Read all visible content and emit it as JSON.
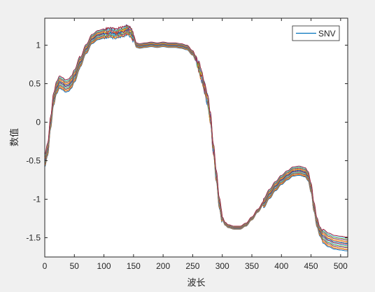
{
  "chart_data": {
    "type": "line",
    "title": "",
    "xlabel": "波长",
    "ylabel": "数值",
    "xlim": [
      0,
      512
    ],
    "ylim": [
      -1.75,
      1.35
    ],
    "xticks": [
      0,
      50,
      100,
      150,
      200,
      250,
      300,
      350,
      400,
      450,
      500
    ],
    "yticks": [
      -1.5,
      -1,
      -0.5,
      0,
      0.5,
      1
    ],
    "xtick_labels": [
      "0",
      "50",
      "100",
      "150",
      "200",
      "250",
      "300",
      "350",
      "400",
      "450",
      "500"
    ],
    "ytick_labels": [
      "-1.5",
      "-1",
      "-0.5",
      "0",
      "0.5",
      "1"
    ],
    "grid": false,
    "legend": {
      "position": "top-right",
      "entries": [
        "SNV"
      ]
    },
    "series_count": 14,
    "series_colors": [
      "#0072BD",
      "#D95319",
      "#EDB120",
      "#7E2F8E",
      "#77AC30",
      "#4DBEEE",
      "#A2142F",
      "#0072BD",
      "#D95319",
      "#EDB120",
      "#7E2F8E",
      "#77AC30",
      "#4DBEEE",
      "#A2142F"
    ],
    "mean_profile": {
      "x": [
        0,
        5,
        10,
        15,
        20,
        25,
        30,
        35,
        40,
        45,
        50,
        60,
        70,
        80,
        90,
        100,
        110,
        120,
        130,
        140,
        145,
        150,
        155,
        160,
        170,
        180,
        190,
        200,
        210,
        220,
        230,
        240,
        250,
        255,
        260,
        265,
        270,
        275,
        280,
        285,
        290,
        295,
        300,
        305,
        310,
        320,
        330,
        340,
        350,
        360,
        370,
        380,
        390,
        400,
        410,
        420,
        430,
        440,
        445,
        450,
        455,
        460,
        465,
        470,
        480,
        490,
        500,
        510
      ],
      "y": [
        -0.5,
        -0.35,
        0.0,
        0.3,
        0.45,
        0.52,
        0.5,
        0.47,
        0.48,
        0.52,
        0.6,
        0.78,
        0.95,
        1.08,
        1.13,
        1.15,
        1.16,
        1.15,
        1.17,
        1.2,
        1.17,
        1.1,
        1.0,
        0.99,
        1.0,
        1.01,
        1.0,
        1.01,
        1.0,
        1.0,
        0.99,
        0.97,
        0.9,
        0.83,
        0.72,
        0.6,
        0.45,
        0.3,
        0.05,
        -0.35,
        -0.7,
        -1.05,
        -1.25,
        -1.32,
        -1.35,
        -1.37,
        -1.37,
        -1.33,
        -1.25,
        -1.15,
        -1.05,
        -0.93,
        -0.83,
        -0.75,
        -0.69,
        -0.64,
        -0.63,
        -0.65,
        -0.7,
        -0.85,
        -1.1,
        -1.3,
        -1.42,
        -1.48,
        -1.53,
        -1.56,
        -1.57,
        -1.58
      ]
    }
  }
}
